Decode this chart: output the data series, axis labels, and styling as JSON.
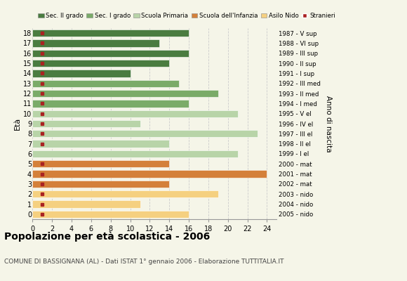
{
  "ages": [
    18,
    17,
    16,
    15,
    14,
    13,
    12,
    11,
    10,
    9,
    8,
    7,
    6,
    5,
    4,
    3,
    2,
    1,
    0
  ],
  "years": [
    "1987 - V sup",
    "1988 - VI sup",
    "1989 - III sup",
    "1990 - II sup",
    "1991 - I sup",
    "1992 - III med",
    "1993 - II med",
    "1994 - I med",
    "1995 - V el",
    "1996 - IV el",
    "1997 - III el",
    "1998 - II el",
    "1999 - I el",
    "2000 - mat",
    "2001 - mat",
    "2002 - mat",
    "2003 - nido",
    "2004 - nido",
    "2005 - nido"
  ],
  "values": [
    16,
    13,
    16,
    14,
    10,
    15,
    19,
    16,
    21,
    11,
    23,
    14,
    21,
    14,
    24,
    14,
    19,
    11,
    16
  ],
  "stranieri": [
    1,
    1,
    1,
    1,
    1,
    1,
    1,
    1,
    1,
    1,
    1,
    1,
    0,
    1,
    1,
    2,
    2,
    2,
    1
  ],
  "bar_colors": [
    "#4a7c40",
    "#4a7c40",
    "#4a7c40",
    "#4a7c40",
    "#4a7c40",
    "#7aab68",
    "#7aab68",
    "#7aab68",
    "#b8d4a8",
    "#b8d4a8",
    "#b8d4a8",
    "#b8d4a8",
    "#b8d4a8",
    "#d4803a",
    "#d4803a",
    "#d4803a",
    "#f5d080",
    "#f5d080",
    "#f5d080"
  ],
  "stranieri_color": "#aa2222",
  "title": "Popolazione per età scolastica - 2006",
  "subtitle": "COMUNE DI BASSIGNANA (AL) - Dati ISTAT 1° gennaio 2006 - Elaborazione TUTTITALIA.IT",
  "ylabel_age": "Età",
  "ylabel_year": "Anno di nascita",
  "xlim": [
    0,
    25
  ],
  "xticks": [
    0,
    2,
    4,
    6,
    8,
    10,
    12,
    14,
    16,
    18,
    20,
    22,
    24
  ],
  "bg_color": "#f5f5e8",
  "legend_labels": [
    "Sec. II grado",
    "Sec. I grado",
    "Scuola Primaria",
    "Scuola dell'Infanzia",
    "Asilo Nido",
    "Stranieri"
  ],
  "legend_colors": [
    "#4a7c40",
    "#7aab68",
    "#b8d4a8",
    "#d4803a",
    "#f5d080",
    "#aa2222"
  ]
}
